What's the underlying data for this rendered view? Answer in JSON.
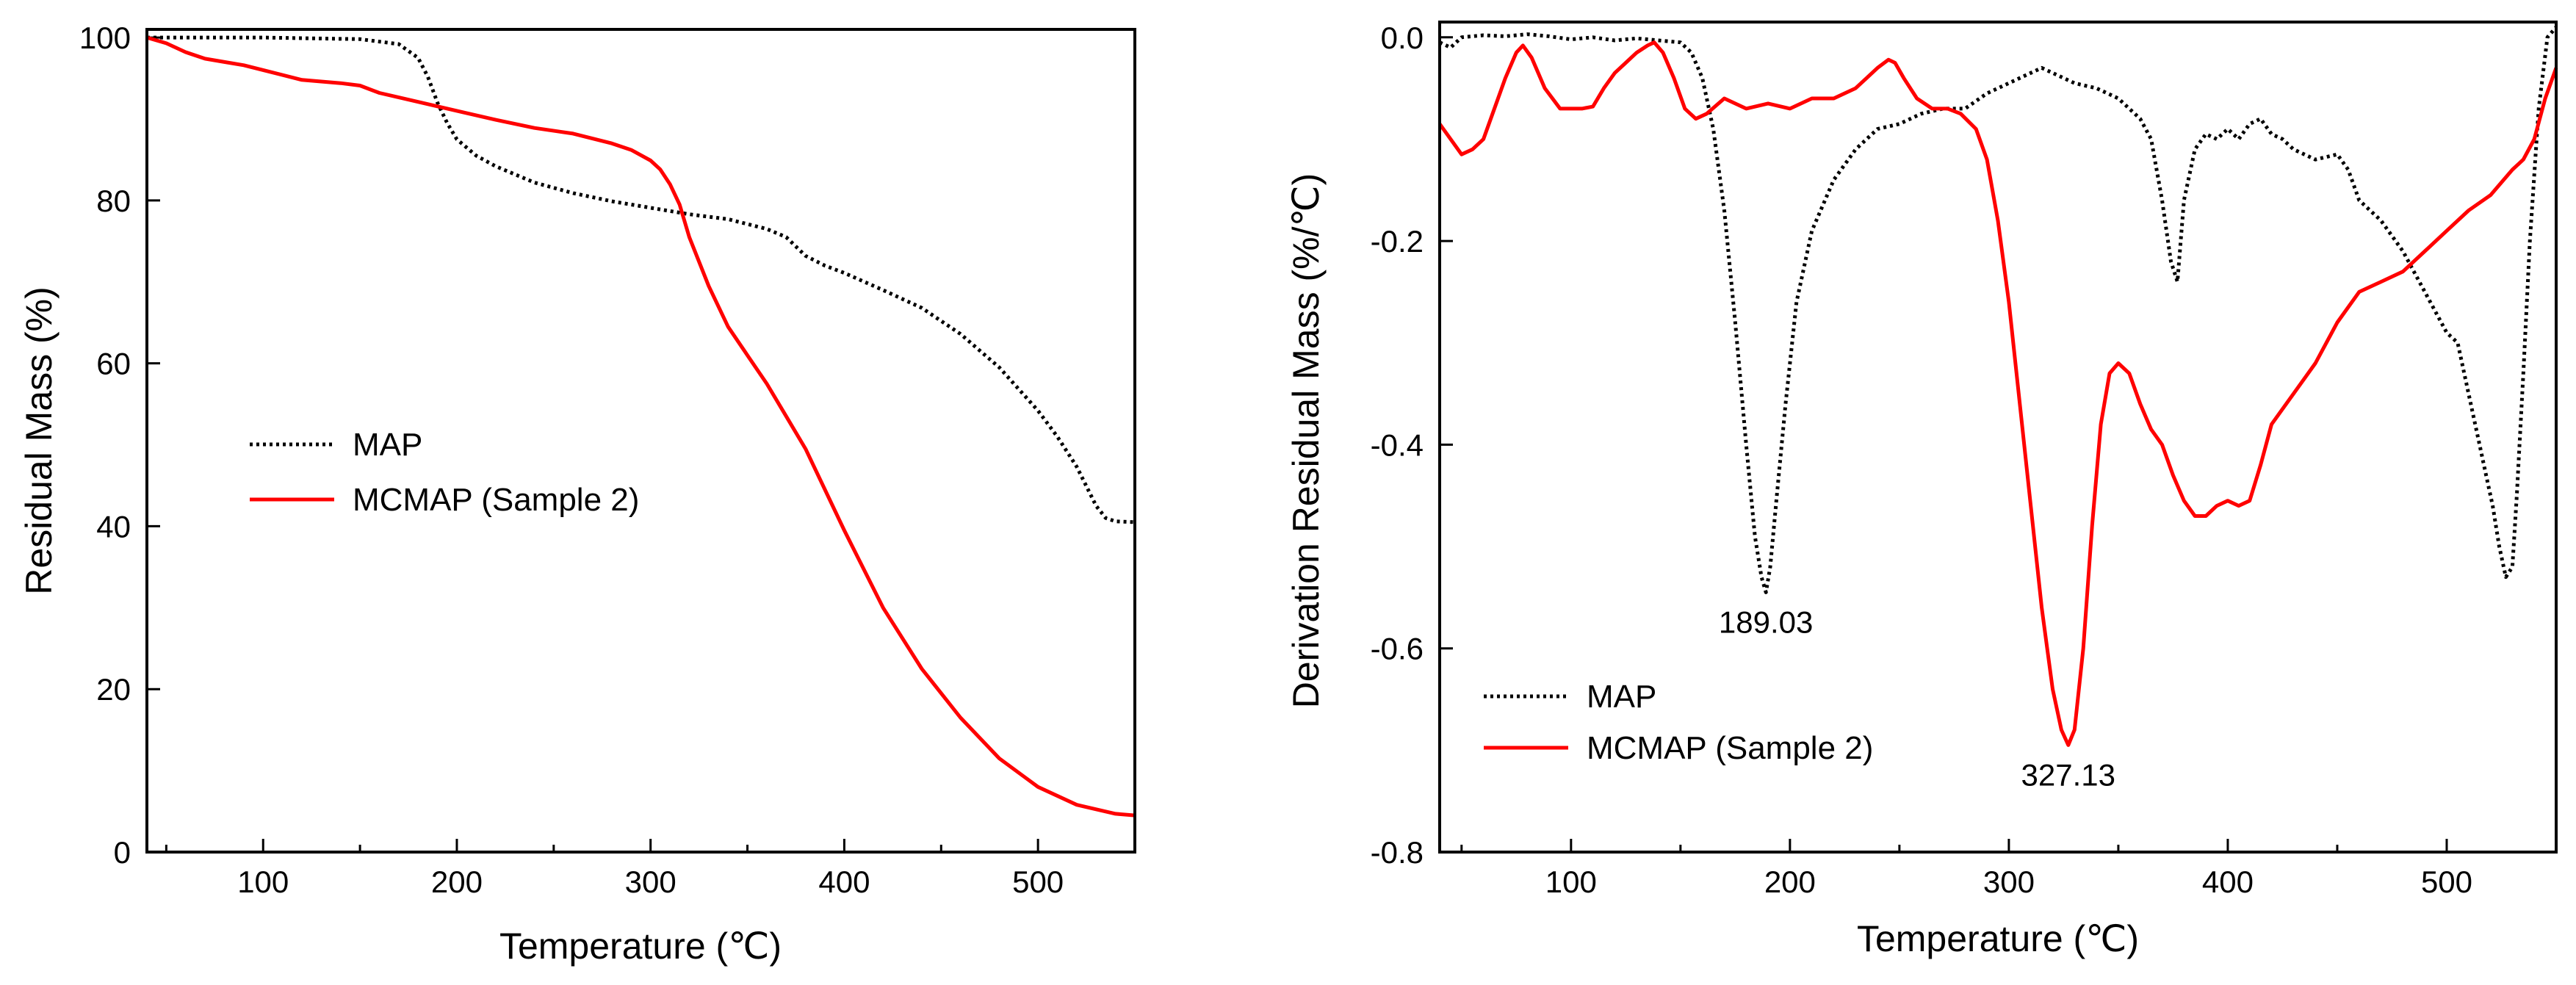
{
  "chart_data": [
    {
      "type": "line",
      "xlabel": "Temperature (℃)",
      "ylabel": "Residual Mass (%)",
      "xlim": [
        40,
        550
      ],
      "ylim": [
        0,
        101
      ],
      "xticks": [
        100,
        200,
        300,
        400,
        500
      ],
      "xticks_minor": [
        50,
        150,
        250,
        350,
        450,
        550
      ],
      "yticks": [
        0,
        20,
        40,
        60,
        80,
        100
      ],
      "legend_position": "center-left",
      "series": [
        {
          "name": "MAP",
          "style": "dotted",
          "color": "#000000",
          "x": [
            40,
            100,
            150,
            170,
            180,
            185,
            190,
            195,
            200,
            210,
            220,
            240,
            260,
            280,
            300,
            320,
            340,
            360,
            370,
            380,
            390,
            400,
            420,
            440,
            460,
            480,
            500,
            510,
            520,
            530,
            535,
            540,
            550
          ],
          "y": [
            100,
            100,
            99.8,
            99.2,
            97.5,
            95.2,
            92.0,
            89.5,
            87.5,
            85.5,
            84.2,
            82.2,
            80.9,
            79.9,
            79.1,
            78.3,
            77.7,
            76.5,
            75.5,
            73.2,
            72.0,
            71.1,
            69.0,
            66.8,
            63.6,
            59.5,
            54.2,
            51.0,
            47.3,
            42.5,
            41.0,
            40.6,
            40.5
          ]
        },
        {
          "name": "MCMAP (Sample 2)",
          "style": "solid",
          "color": "#ff0000",
          "x": [
            40,
            50,
            60,
            70,
            80,
            90,
            100,
            120,
            140,
            150,
            160,
            180,
            200,
            220,
            240,
            260,
            280,
            290,
            300,
            305,
            310,
            315,
            320,
            330,
            340,
            350,
            360,
            370,
            380,
            400,
            420,
            440,
            460,
            480,
            500,
            520,
            540,
            550
          ],
          "y": [
            100,
            99.3,
            98.2,
            97.4,
            97.0,
            96.6,
            96.0,
            94.8,
            94.4,
            94.1,
            93.2,
            92.1,
            91.0,
            89.9,
            88.9,
            88.2,
            87.0,
            86.2,
            84.9,
            83.8,
            82.0,
            79.5,
            75.5,
            69.5,
            64.5,
            61.0,
            57.5,
            53.5,
            49.5,
            39.5,
            30.0,
            22.5,
            16.5,
            11.5,
            8.0,
            5.8,
            4.7,
            4.5
          ]
        }
      ]
    },
    {
      "type": "line",
      "xlabel": "Temperature (℃)",
      "ylabel": "Derivation Residual Mass (%/℃)",
      "xlim": [
        40,
        550
      ],
      "ylim": [
        -0.8,
        0.015
      ],
      "xticks": [
        100,
        200,
        300,
        400,
        500
      ],
      "xticks_minor": [
        50,
        150,
        250,
        350,
        450,
        550
      ],
      "yticks": [
        -0.8,
        -0.6,
        -0.4,
        -0.2,
        0.0
      ],
      "ytick_labels": [
        "-0.8",
        "-0.6",
        "-0.4",
        "-0.2",
        "0.0"
      ],
      "legend_position": "bottom-left",
      "annotations": [
        {
          "text": "189.03",
          "x": 189.03,
          "y": -0.545
        },
        {
          "text": "327.13",
          "x": 327.13,
          "y": -0.695
        }
      ],
      "series": [
        {
          "name": "MAP",
          "style": "dotted",
          "color": "#000000",
          "x": [
            40,
            45,
            50,
            60,
            70,
            80,
            90,
            100,
            110,
            120,
            130,
            140,
            150,
            155,
            160,
            165,
            170,
            175,
            180,
            184,
            187,
            189.03,
            191,
            194,
            198,
            203,
            210,
            220,
            230,
            240,
            250,
            260,
            270,
            280,
            290,
            300,
            310,
            315,
            320,
            330,
            340,
            350,
            360,
            365,
            370,
            374,
            377,
            380,
            385,
            390,
            395,
            400,
            405,
            410,
            415,
            420,
            425,
            430,
            440,
            450,
            455,
            460,
            470,
            480,
            490,
            500,
            505,
            510,
            515,
            518,
            521,
            524,
            527,
            530,
            532,
            535,
            538,
            542,
            546,
            550
          ],
          "y": [
            -0.005,
            -0.01,
            0.0,
            0.002,
            0.001,
            0.003,
            0.001,
            -0.002,
            0.0,
            -0.003,
            -0.001,
            -0.003,
            -0.005,
            -0.015,
            -0.04,
            -0.09,
            -0.17,
            -0.28,
            -0.4,
            -0.49,
            -0.53,
            -0.545,
            -0.52,
            -0.45,
            -0.36,
            -0.26,
            -0.19,
            -0.14,
            -0.11,
            -0.09,
            -0.085,
            -0.075,
            -0.07,
            -0.07,
            -0.055,
            -0.045,
            -0.035,
            -0.03,
            -0.035,
            -0.045,
            -0.05,
            -0.06,
            -0.08,
            -0.1,
            -0.16,
            -0.22,
            -0.24,
            -0.16,
            -0.11,
            -0.095,
            -0.1,
            -0.09,
            -0.1,
            -0.085,
            -0.08,
            -0.095,
            -0.1,
            -0.11,
            -0.12,
            -0.115,
            -0.13,
            -0.16,
            -0.18,
            -0.21,
            -0.25,
            -0.29,
            -0.3,
            -0.35,
            -0.4,
            -0.43,
            -0.46,
            -0.5,
            -0.53,
            -0.52,
            -0.45,
            -0.33,
            -0.2,
            -0.07,
            0.0,
            0.01
          ]
        },
        {
          "name": "MCMAP (Sample 2)",
          "style": "solid",
          "color": "#ff0000",
          "x": [
            40,
            45,
            50,
            55,
            60,
            65,
            70,
            75,
            78,
            82,
            88,
            95,
            105,
            110,
            115,
            120,
            125,
            130,
            135,
            138,
            142,
            147,
            152,
            157,
            162,
            170,
            180,
            190,
            200,
            210,
            220,
            230,
            235,
            240,
            245,
            248,
            252,
            258,
            265,
            272,
            278,
            285,
            290,
            295,
            300,
            305,
            310,
            315,
            320,
            324,
            327.13,
            330,
            334,
            338,
            342,
            346,
            350,
            355,
            360,
            365,
            370,
            375,
            380,
            385,
            390,
            395,
            400,
            405,
            410,
            415,
            420,
            430,
            440,
            450,
            460,
            470,
            480,
            490,
            500,
            510,
            520,
            530,
            535,
            540,
            545,
            550
          ],
          "y": [
            -0.085,
            -0.1,
            -0.115,
            -0.11,
            -0.1,
            -0.07,
            -0.04,
            -0.015,
            -0.008,
            -0.02,
            -0.05,
            -0.07,
            -0.07,
            -0.068,
            -0.05,
            -0.035,
            -0.025,
            -0.015,
            -0.008,
            -0.005,
            -0.015,
            -0.04,
            -0.07,
            -0.08,
            -0.075,
            -0.06,
            -0.07,
            -0.065,
            -0.07,
            -0.06,
            -0.06,
            -0.05,
            -0.04,
            -0.03,
            -0.022,
            -0.025,
            -0.04,
            -0.06,
            -0.07,
            -0.07,
            -0.075,
            -0.09,
            -0.12,
            -0.18,
            -0.26,
            -0.36,
            -0.46,
            -0.56,
            -0.64,
            -0.68,
            -0.695,
            -0.68,
            -0.6,
            -0.48,
            -0.38,
            -0.33,
            -0.32,
            -0.33,
            -0.36,
            -0.385,
            -0.4,
            -0.43,
            -0.455,
            -0.47,
            -0.47,
            -0.46,
            -0.455,
            -0.46,
            -0.455,
            -0.42,
            -0.38,
            -0.35,
            -0.32,
            -0.28,
            -0.25,
            -0.24,
            -0.23,
            -0.21,
            -0.19,
            -0.17,
            -0.155,
            -0.13,
            -0.12,
            -0.1,
            -0.06,
            -0.03
          ]
        }
      ]
    }
  ]
}
